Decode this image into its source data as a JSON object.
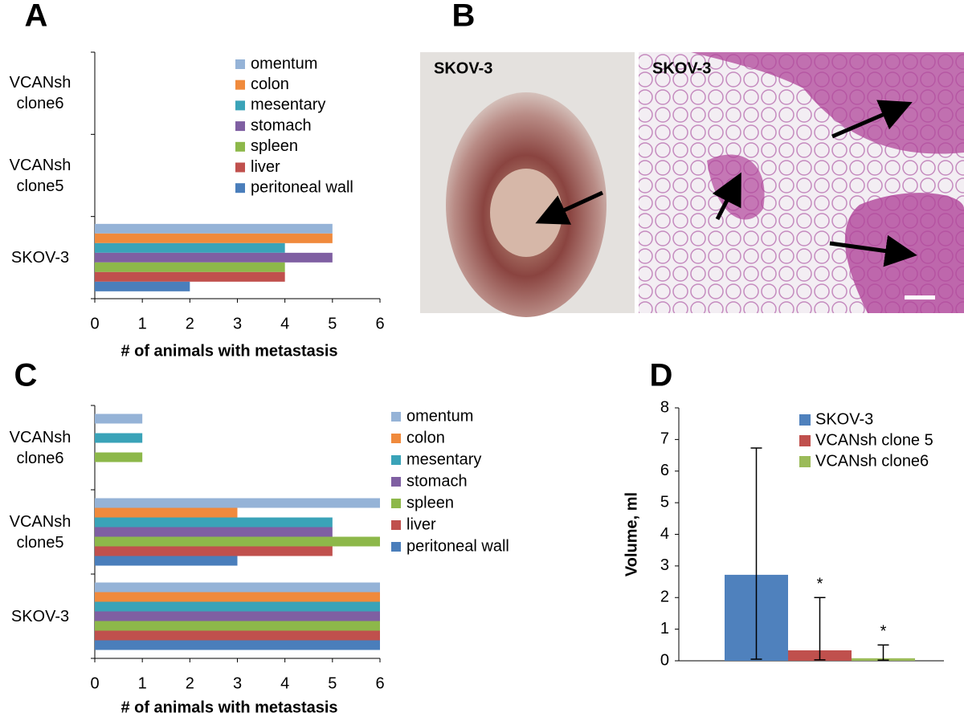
{
  "chart_data": [
    {
      "type": "hbar",
      "panel": "A",
      "xlabel": "# of animals with metastasis",
      "categories": [
        "SKOV-3",
        "VCANsh clone5",
        "VCANsh clone6"
      ],
      "series": [
        {
          "name": "omentum",
          "color": "#95b3d7",
          "values": [
            5,
            0,
            0
          ]
        },
        {
          "name": "colon",
          "color": "#f08a3c",
          "values": [
            5,
            0,
            0
          ]
        },
        {
          "name": "mesentary",
          "color": "#3aa3b8",
          "values": [
            4,
            0,
            0
          ]
        },
        {
          "name": "stomach",
          "color": "#7f5fa2",
          "values": [
            5,
            0,
            0
          ]
        },
        {
          "name": "spleen",
          "color": "#8db84a",
          "values": [
            4,
            0,
            0
          ]
        },
        {
          "name": "liver",
          "color": "#c0504d",
          "values": [
            4,
            0,
            0
          ]
        },
        {
          "name": "peritoneal wall",
          "color": "#4a7ebb",
          "values": [
            2,
            0,
            0
          ]
        }
      ],
      "xlim": [
        0,
        6
      ],
      "xticks": [
        0,
        1,
        2,
        3,
        4,
        5,
        6
      ],
      "legend": "upper right"
    },
    {
      "type": "hbar",
      "panel": "C",
      "xlabel": "# of animals with metastasis",
      "categories": [
        "SKOV-3",
        "VCANsh clone5",
        "VCANsh clone6"
      ],
      "series": [
        {
          "name": "omentum",
          "color": "#95b3d7",
          "values": [
            6,
            6,
            1
          ]
        },
        {
          "name": "colon",
          "color": "#f08a3c",
          "values": [
            6,
            3,
            0
          ]
        },
        {
          "name": "mesentary",
          "color": "#3aa3b8",
          "values": [
            6,
            5,
            1
          ]
        },
        {
          "name": "stomach",
          "color": "#7f5fa2",
          "values": [
            6,
            5,
            0
          ]
        },
        {
          "name": "spleen",
          "color": "#8db84a",
          "values": [
            6,
            6,
            1
          ]
        },
        {
          "name": "liver",
          "color": "#c0504d",
          "values": [
            6,
            5,
            0
          ]
        },
        {
          "name": "peritoneal wall",
          "color": "#4a7ebb",
          "values": [
            6,
            3,
            0
          ]
        }
      ],
      "xlim": [
        0,
        6
      ],
      "xticks": [
        0,
        1,
        2,
        3,
        4,
        5,
        6
      ],
      "legend": "right"
    },
    {
      "type": "bar",
      "panel": "D",
      "ylabel": "Volume, ml",
      "series": [
        {
          "name": "SKOV-3",
          "color": "#4f81bd",
          "values": [
            2.72
          ],
          "error_range": [
            [
              0.05,
              6.73
            ]
          ]
        },
        {
          "name": "VCANsh clone 5",
          "color": "#c0504d",
          "values": [
            0.33
          ],
          "error_range": [
            [
              0.03,
              2.0
            ]
          ],
          "annotations": [
            "*"
          ]
        },
        {
          "name": "VCANsh clone6",
          "color": "#9bbb59",
          "values": [
            0.08
          ],
          "error_range": [
            [
              0.02,
              0.5
            ]
          ],
          "annotations": [
            "*"
          ]
        }
      ],
      "ylim": [
        0,
        8
      ],
      "yticks": [
        0,
        1,
        2,
        3,
        4,
        5,
        6,
        7,
        8
      ],
      "legend": "upper right"
    }
  ],
  "images": {
    "panel": "B",
    "photo_labels": [
      "SKOV-3",
      "SKOV-3"
    ]
  }
}
